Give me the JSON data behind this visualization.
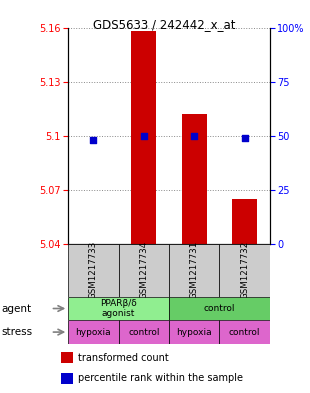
{
  "title": "GDS5633 / 242442_x_at",
  "samples": [
    "GSM1217733",
    "GSM1217734",
    "GSM1217731",
    "GSM1217732"
  ],
  "transformed_counts": [
    5.04,
    5.158,
    5.112,
    5.065
  ],
  "percentile_ranks": [
    48,
    50,
    50,
    49
  ],
  "ylim_left": [
    5.04,
    5.16
  ],
  "yticks_left": [
    5.04,
    5.07,
    5.1,
    5.13,
    5.16
  ],
  "yticks_right": [
    0,
    25,
    50,
    75,
    100
  ],
  "bar_color": "#cc0000",
  "dot_color": "#0000cc",
  "agent_labels": [
    "PPARβ/δ\nagonist",
    "control"
  ],
  "agent_colors": [
    "#90ee90",
    "#66cc66"
  ],
  "stress_labels": [
    "hypoxia",
    "control",
    "hypoxia",
    "control"
  ],
  "stress_color": "#dd66cc",
  "bg_color": "#cccccc",
  "baseline": 5.04,
  "legend_red": "transformed count",
  "legend_blue": "percentile rank within the sample"
}
